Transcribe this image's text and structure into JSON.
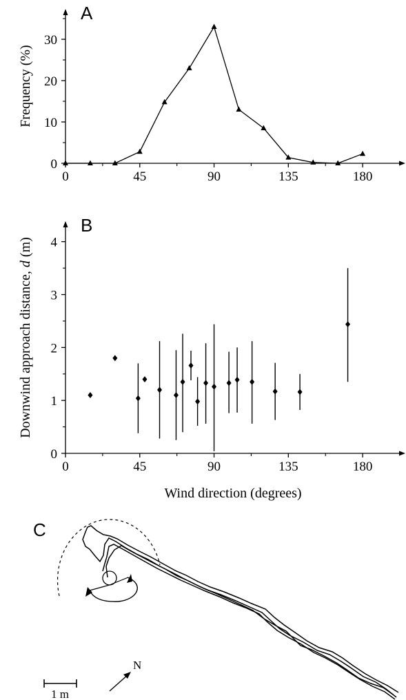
{
  "chart_data": [
    {
      "panel": "A",
      "type": "line",
      "ylabel": "Frequency (%)",
      "xlabel": "",
      "xlim": [
        0,
        200
      ],
      "ylim": [
        0,
        37
      ],
      "xticks": [
        0,
        45,
        90,
        135,
        180
      ],
      "yticks": [
        0,
        10,
        20,
        30
      ],
      "marker": "triangle",
      "points": [
        {
          "x": 0,
          "y": 0
        },
        {
          "x": 15,
          "y": 0
        },
        {
          "x": 30,
          "y": 0
        },
        {
          "x": 45,
          "y": 2.8
        },
        {
          "x": 60,
          "y": 14.8
        },
        {
          "x": 75,
          "y": 23
        },
        {
          "x": 90,
          "y": 33
        },
        {
          "x": 105,
          "y": 13
        },
        {
          "x": 120,
          "y": 8.5
        },
        {
          "x": 135,
          "y": 1.4
        },
        {
          "x": 150,
          "y": 0.2
        },
        {
          "x": 165,
          "y": 0
        },
        {
          "x": 180,
          "y": 2.3
        }
      ]
    },
    {
      "panel": "B",
      "type": "scatter",
      "ylabel_prefix": "Downwind approach distance, ",
      "ylabel_var": "d",
      "ylabel_suffix": " (m)",
      "xlabel": "Wind direction (degrees)",
      "xlim": [
        0,
        200
      ],
      "ylim": [
        0,
        4.4
      ],
      "xticks": [
        0,
        45,
        90,
        135,
        180
      ],
      "yticks": [
        0,
        1,
        2,
        3,
        4
      ],
      "marker": "diamond",
      "points": [
        {
          "x": 15,
          "y": 1.1,
          "lo": null,
          "hi": null
        },
        {
          "x": 30,
          "y": 1.8,
          "lo": null,
          "hi": null
        },
        {
          "x": 44,
          "y": 1.04,
          "lo": 0.38,
          "hi": 1.7
        },
        {
          "x": 48,
          "y": 1.4,
          "lo": null,
          "hi": null
        },
        {
          "x": 57,
          "y": 1.2,
          "lo": 0.28,
          "hi": 2.12
        },
        {
          "x": 67,
          "y": 1.1,
          "lo": 0.25,
          "hi": 1.95
        },
        {
          "x": 71,
          "y": 1.35,
          "lo": 0.4,
          "hi": 2.26
        },
        {
          "x": 76,
          "y": 1.66,
          "lo": 1.38,
          "hi": 1.94
        },
        {
          "x": 80,
          "y": 0.98,
          "lo": 0.52,
          "hi": 1.44
        },
        {
          "x": 85,
          "y": 1.33,
          "lo": 0.56,
          "hi": 2.08
        },
        {
          "x": 90,
          "y": 1.26,
          "lo": 0.04,
          "hi": 2.44
        },
        {
          "x": 99,
          "y": 1.33,
          "lo": 0.76,
          "hi": 1.92
        },
        {
          "x": 104,
          "y": 1.39,
          "lo": 0.77,
          "hi": 2.0
        },
        {
          "x": 113,
          "y": 1.35,
          "lo": 0.56,
          "hi": 2.12
        },
        {
          "x": 127,
          "y": 1.17,
          "lo": 0.63,
          "hi": 1.71
        },
        {
          "x": 142,
          "y": 1.16,
          "lo": 0.82,
          "hi": 1.5
        },
        {
          "x": 171,
          "y": 2.44,
          "lo": 1.35,
          "hi": 3.5
        }
      ]
    }
  ],
  "panel_c": {
    "label": "C",
    "scale_label": "1 m",
    "north_label": "N"
  }
}
